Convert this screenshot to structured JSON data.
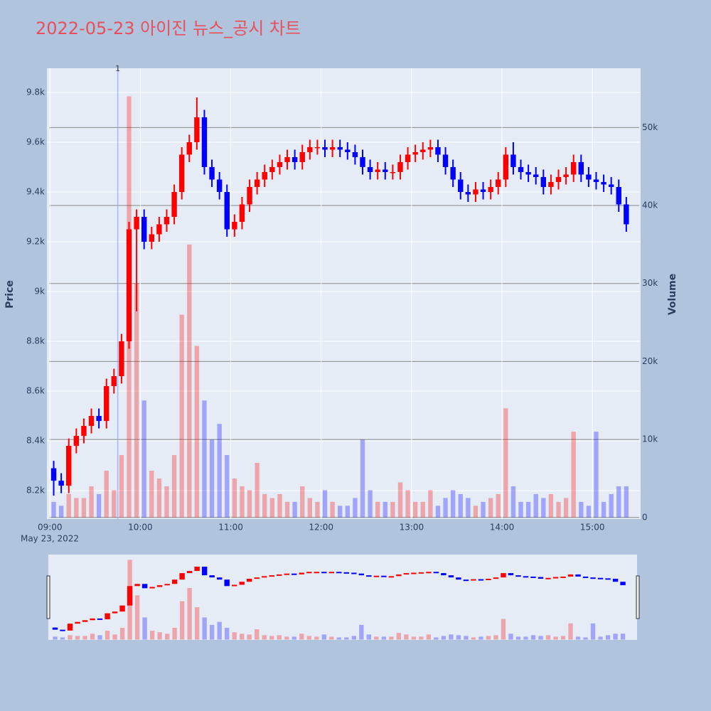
{
  "chart_data": {
    "type": "candlestick",
    "title": "2022-05-23 아이진 뉴스_공시 차트",
    "y_label": "Price",
    "y2_label": "Volume",
    "x_date_label": "May 23, 2022",
    "increasing_color": "#ff0000",
    "decreasing_color": "#0000ff",
    "xlim": [
      "08:58",
      "15:32"
    ],
    "xticks": [
      "09:00",
      "10:00",
      "11:00",
      "12:00",
      "13:00",
      "14:00",
      "15:00"
    ],
    "ylim": [
      8086,
      9897
    ],
    "yticks": [
      {
        "value": 8200,
        "label": "8.2k"
      },
      {
        "value": 8400,
        "label": "8.4k"
      },
      {
        "value": 8600,
        "label": "8.6k"
      },
      {
        "value": 8800,
        "label": "8.8k"
      },
      {
        "value": 9000,
        "label": "9k"
      },
      {
        "value": 9200,
        "label": "9.2k"
      },
      {
        "value": 9400,
        "label": "9.4k"
      },
      {
        "value": 9600,
        "label": "9.6k"
      },
      {
        "value": 9800,
        "label": "9.8k"
      }
    ],
    "y2lim": [
      -200,
      57600
    ],
    "y2ticks": [
      0,
      {
        "value": 10000,
        "label": "10k"
      },
      {
        "value": 20000,
        "label": "20k"
      },
      {
        "value": 30000,
        "label": "30k"
      },
      {
        "value": 40000,
        "label": "40k"
      },
      {
        "value": 50000,
        "label": "50k"
      }
    ],
    "annotation": {
      "x": "09:45",
      "text": "1"
    },
    "x": [
      "09:00",
      "09:05",
      "09:10",
      "09:15",
      "09:20",
      "09:25",
      "09:30",
      "09:35",
      "09:40",
      "09:45",
      "09:50",
      "09:55",
      "10:00",
      "10:05",
      "10:10",
      "10:15",
      "10:20",
      "10:25",
      "10:30",
      "10:35",
      "10:40",
      "10:45",
      "10:50",
      "10:55",
      "11:00",
      "11:05",
      "11:10",
      "11:15",
      "11:20",
      "11:25",
      "11:30",
      "11:35",
      "11:40",
      "11:45",
      "11:50",
      "11:55",
      "12:00",
      "12:05",
      "12:10",
      "12:15",
      "12:20",
      "12:25",
      "12:30",
      "12:35",
      "12:40",
      "12:45",
      "12:50",
      "12:55",
      "13:00",
      "13:05",
      "13:10",
      "13:15",
      "13:20",
      "13:25",
      "13:30",
      "13:35",
      "13:40",
      "13:45",
      "13:50",
      "13:55",
      "14:00",
      "14:05",
      "14:10",
      "14:15",
      "14:20",
      "14:25",
      "14:30",
      "14:35",
      "14:40",
      "14:45",
      "14:50",
      "14:55",
      "15:00",
      "15:05",
      "15:10",
      "15:15",
      "15:20"
    ],
    "open": [
      8290,
      8240,
      8220,
      8380,
      8420,
      8460,
      8500,
      8480,
      8620,
      8660,
      8800,
      9250,
      9300,
      9200,
      9230,
      9270,
      9300,
      9400,
      9550,
      9600,
      9700,
      9500,
      9450,
      9400,
      9250,
      9280,
      9350,
      9420,
      9450,
      9480,
      9500,
      9520,
      9540,
      9520,
      9560,
      9580,
      9580,
      9570,
      9580,
      9570,
      9560,
      9540,
      9500,
      9480,
      9490,
      9480,
      9480,
      9520,
      9550,
      9560,
      9570,
      9580,
      9550,
      9500,
      9450,
      9400,
      9390,
      9410,
      9400,
      9420,
      9450,
      9550,
      9500,
      9480,
      9470,
      9460,
      9420,
      9440,
      9460,
      9470,
      9520,
      9470,
      9450,
      9440,
      9430,
      9420,
      9350
    ],
    "high": [
      8320,
      8270,
      8410,
      8450,
      8490,
      8530,
      8530,
      8650,
      8690,
      8830,
      9280,
      9330,
      9330,
      9260,
      9300,
      9330,
      9430,
      9580,
      9630,
      9780,
      9730,
      9530,
      9480,
      9430,
      9310,
      9380,
      9450,
      9480,
      9510,
      9530,
      9550,
      9570,
      9570,
      9590,
      9610,
      9610,
      9610,
      9610,
      9610,
      9600,
      9590,
      9570,
      9530,
      9520,
      9520,
      9510,
      9550,
      9580,
      9590,
      9600,
      9610,
      9610,
      9580,
      9530,
      9480,
      9430,
      9440,
      9440,
      9450,
      9480,
      9580,
      9600,
      9530,
      9510,
      9500,
      9490,
      9470,
      9490,
      9500,
      9550,
      9550,
      9500,
      9480,
      9470,
      9460,
      9450,
      9380
    ],
    "low": [
      8180,
      8190,
      8190,
      8350,
      8390,
      8430,
      8450,
      8450,
      8590,
      8630,
      8770,
      8920,
      9170,
      9170,
      9200,
      9240,
      9270,
      9370,
      9520,
      9570,
      9470,
      9420,
      9370,
      9220,
      9220,
      9250,
      9320,
      9390,
      9420,
      9450,
      9470,
      9490,
      9490,
      9490,
      9530,
      9550,
      9540,
      9540,
      9540,
      9530,
      9510,
      9470,
      9450,
      9450,
      9450,
      9450,
      9450,
      9490,
      9520,
      9530,
      9540,
      9520,
      9470,
      9420,
      9370,
      9360,
      9360,
      9370,
      9370,
      9390,
      9420,
      9470,
      9450,
      9440,
      9430,
      9390,
      9390,
      9410,
      9430,
      9440,
      9440,
      9420,
      9410,
      9400,
      9390,
      9320,
      9240
    ],
    "close": [
      8240,
      8220,
      8380,
      8420,
      8460,
      8500,
      8480,
      8620,
      8660,
      8800,
      9250,
      9300,
      9200,
      9230,
      9270,
      9300,
      9400,
      9550,
      9600,
      9700,
      9500,
      9450,
      9400,
      9250,
      9280,
      9350,
      9420,
      9450,
      9480,
      9500,
      9520,
      9540,
      9520,
      9560,
      9580,
      9580,
      9570,
      9580,
      9570,
      9560,
      9540,
      9500,
      9480,
      9490,
      9480,
      9480,
      9520,
      9550,
      9560,
      9570,
      9580,
      9550,
      9500,
      9450,
      9400,
      9390,
      9410,
      9400,
      9420,
      9450,
      9550,
      9500,
      9480,
      9470,
      9460,
      9420,
      9440,
      9460,
      9470,
      9520,
      9470,
      9450,
      9440,
      9430,
      9420,
      9350,
      9270
    ],
    "volume": [
      2000,
      1500,
      3000,
      2500,
      2500,
      4000,
      3000,
      6000,
      3500,
      8000,
      54000,
      30000,
      15000,
      6000,
      5000,
      4000,
      8000,
      26000,
      35000,
      22000,
      15000,
      10000,
      12000,
      8000,
      5000,
      4000,
      3500,
      7000,
      3000,
      2500,
      3000,
      2000,
      2000,
      4000,
      2500,
      2000,
      3500,
      2000,
      1500,
      1500,
      2500,
      10000,
      3500,
      2000,
      2000,
      2000,
      4500,
      3500,
      2000,
      2000,
      3500,
      1500,
      2500,
      3500,
      3000,
      2500,
      1500,
      2000,
      2500,
      3000,
      14000,
      4000,
      2000,
      2000,
      3000,
      2500,
      3000,
      2000,
      2500,
      11000,
      2000,
      1500,
      11000,
      2000,
      3000,
      4000,
      4000
    ]
  }
}
